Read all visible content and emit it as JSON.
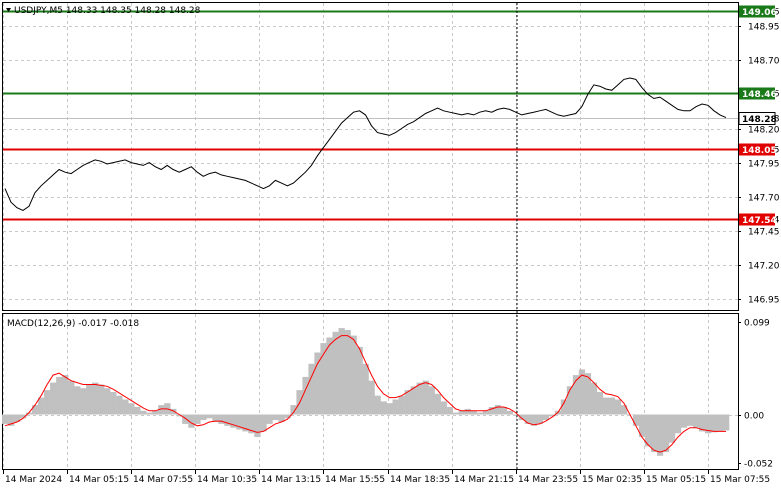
{
  "chart_data": [
    {
      "type": "line",
      "title": "USDJPY,M5  148.33 148.35 148.28 148.28",
      "symbol": "USDJPY,M5",
      "ohlc": [
        "148.33",
        "148.35",
        "148.28",
        "148.28"
      ],
      "ylim": [
        146.87,
        149.12
      ],
      "y_ticks": [
        "149.06",
        "148.95",
        "148.70",
        "148.46",
        "148.28",
        "148.20",
        "148.05",
        "147.95",
        "147.70",
        "147.54",
        "147.45",
        "147.20",
        "146.95"
      ],
      "x_ticks": [
        "14 Mar 2024",
        "14 Mar 05:15",
        "14 Mar 07:55",
        "14 Mar 10:35",
        "14 Mar 13:15",
        "14 Mar 15:55",
        "14 Mar 18:35",
        "14 Mar 21:15",
        "14 Mar 23:55",
        "15 Mar 02:35",
        "15 Mar 05:15",
        "15 Mar 07:55"
      ],
      "current_price": 148.28,
      "levels": [
        {
          "value": 149.06,
          "label": "149.06",
          "color": "#1a7a1a"
        },
        {
          "value": 148.46,
          "label": "148.46",
          "color": "#1a7a1a"
        },
        {
          "value": 148.05,
          "label": "148.05",
          "color": "#e00000"
        },
        {
          "value": 147.54,
          "label": "147.54",
          "color": "#e00000"
        }
      ],
      "x_count": 121,
      "series": [
        {
          "color": "#000000",
          "values": [
            147.76,
            147.66,
            147.62,
            147.6,
            147.63,
            147.73,
            147.78,
            147.82,
            147.86,
            147.9,
            147.88,
            147.87,
            147.9,
            147.93,
            147.95,
            147.97,
            147.96,
            147.94,
            147.95,
            147.96,
            147.97,
            147.95,
            147.94,
            147.93,
            147.95,
            147.92,
            147.9,
            147.93,
            147.9,
            147.88,
            147.9,
            147.92,
            147.88,
            147.85,
            147.87,
            147.88,
            147.86,
            147.85,
            147.84,
            147.83,
            147.82,
            147.8,
            147.78,
            147.76,
            147.78,
            147.82,
            147.8,
            147.78,
            147.8,
            147.84,
            147.88,
            147.93,
            148.0,
            148.06,
            148.12,
            148.18,
            148.24,
            148.28,
            148.32,
            148.33,
            148.3,
            148.22,
            148.17,
            148.16,
            148.15,
            148.17,
            148.2,
            148.23,
            148.25,
            148.28,
            148.31,
            148.33,
            148.35,
            148.33,
            148.32,
            148.31,
            148.3,
            148.31,
            148.3,
            148.32,
            148.33,
            148.32,
            148.34,
            148.35,
            148.34,
            148.32,
            148.3,
            148.31,
            148.32,
            148.33,
            148.34,
            148.32,
            148.3,
            148.29,
            148.3,
            148.31,
            148.36,
            148.45,
            148.52,
            148.51,
            148.49,
            148.48,
            148.52,
            148.56,
            148.57,
            148.56,
            148.5,
            148.45,
            148.42,
            148.43,
            148.4,
            148.37,
            148.34,
            148.33,
            148.33,
            148.36,
            148.38,
            148.37,
            148.33,
            148.3,
            148.28
          ]
        }
      ]
    },
    {
      "type": "bar",
      "title": "MACD(12,26,9) -0.017 -0.018",
      "indicator": "MACD(12,26,9)",
      "values_text": [
        "-0.017",
        "-0.018"
      ],
      "ylim": [
        -0.058,
        0.107
      ],
      "y_ticks": [
        "0.099",
        "0.00",
        "-0.052"
      ],
      "zero_line_value": 0,
      "x_count": 121,
      "histogram_color": "#c0c0c0",
      "signal_color": "#ff0000",
      "histogram": [
        -0.01,
        -0.012,
        -0.008,
        -0.004,
        0.002,
        0.01,
        0.018,
        0.026,
        0.034,
        0.04,
        0.042,
        0.036,
        0.03,
        0.028,
        0.032,
        0.034,
        0.032,
        0.028,
        0.024,
        0.02,
        0.016,
        0.012,
        0.008,
        0.004,
        0.002,
        0.004,
        0.01,
        0.012,
        0.006,
        -0.002,
        -0.01,
        -0.014,
        -0.01,
        -0.006,
        -0.004,
        -0.008,
        -0.01,
        -0.012,
        -0.014,
        -0.016,
        -0.018,
        -0.02,
        -0.024,
        -0.018,
        -0.01,
        -0.006,
        -0.008,
        -0.004,
        0.01,
        0.026,
        0.04,
        0.054,
        0.066,
        0.076,
        0.082,
        0.088,
        0.092,
        0.09,
        0.084,
        0.072,
        0.054,
        0.036,
        0.02,
        0.014,
        0.012,
        0.016,
        0.02,
        0.026,
        0.03,
        0.034,
        0.036,
        0.03,
        0.022,
        0.014,
        0.008,
        0.002,
        0.004,
        0.006,
        0.004,
        0.002,
        0.004,
        0.008,
        0.01,
        0.008,
        0.004,
        0.0,
        -0.006,
        -0.01,
        -0.012,
        -0.01,
        -0.006,
        -0.002,
        0.004,
        0.016,
        0.03,
        0.042,
        0.048,
        0.044,
        0.034,
        0.024,
        0.018,
        0.018,
        0.016,
        0.01,
        0.0,
        -0.012,
        -0.024,
        -0.034,
        -0.04,
        -0.044,
        -0.04,
        -0.03,
        -0.02,
        -0.014,
        -0.012,
        -0.014,
        -0.018,
        -0.02,
        -0.019,
        -0.018,
        -0.017
      ],
      "signal": [
        -0.012,
        -0.01,
        -0.008,
        -0.004,
        0.002,
        0.01,
        0.02,
        0.032,
        0.042,
        0.044,
        0.04,
        0.036,
        0.034,
        0.032,
        0.032,
        0.032,
        0.031,
        0.03,
        0.027,
        0.023,
        0.019,
        0.015,
        0.011,
        0.007,
        0.004,
        0.004,
        0.006,
        0.006,
        0.004,
        0.0,
        -0.004,
        -0.009,
        -0.012,
        -0.011,
        -0.008,
        -0.007,
        -0.007,
        -0.009,
        -0.011,
        -0.013,
        -0.015,
        -0.017,
        -0.019,
        -0.018,
        -0.014,
        -0.01,
        -0.008,
        -0.005,
        0.002,
        0.012,
        0.026,
        0.04,
        0.054,
        0.064,
        0.074,
        0.08,
        0.084,
        0.084,
        0.08,
        0.07,
        0.056,
        0.042,
        0.03,
        0.022,
        0.018,
        0.018,
        0.02,
        0.024,
        0.028,
        0.032,
        0.034,
        0.032,
        0.026,
        0.018,
        0.012,
        0.006,
        0.004,
        0.004,
        0.004,
        0.004,
        0.004,
        0.006,
        0.008,
        0.008,
        0.006,
        0.002,
        -0.004,
        -0.009,
        -0.011,
        -0.01,
        -0.007,
        -0.003,
        0.002,
        0.012,
        0.026,
        0.036,
        0.042,
        0.04,
        0.034,
        0.027,
        0.022,
        0.021,
        0.019,
        0.012,
        0.0,
        -0.012,
        -0.024,
        -0.032,
        -0.038,
        -0.04,
        -0.038,
        -0.032,
        -0.024,
        -0.018,
        -0.014,
        -0.014,
        -0.016,
        -0.017,
        -0.018,
        -0.018,
        -0.018
      ]
    }
  ]
}
